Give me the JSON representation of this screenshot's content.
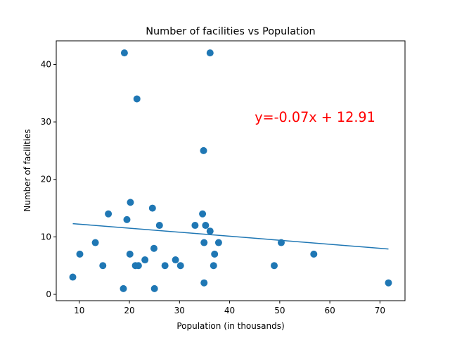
{
  "chart_data": {
    "type": "scatter",
    "title": "Number of facilities vs Population",
    "xlabel": "Population (in thousands)",
    "ylabel": "Number of facilities",
    "xlim": [
      5.4,
      75.0
    ],
    "ylim": [
      -1.1,
      44.1
    ],
    "x_ticks": [
      10,
      20,
      30,
      40,
      50,
      60,
      70
    ],
    "y_ticks": [
      0,
      10,
      20,
      30,
      40
    ],
    "grid": false,
    "points": [
      {
        "x": 8.7,
        "y": 3
      },
      {
        "x": 10.1,
        "y": 7
      },
      {
        "x": 13.2,
        "y": 9
      },
      {
        "x": 14.7,
        "y": 5
      },
      {
        "x": 15.8,
        "y": 14
      },
      {
        "x": 18.8,
        "y": 1
      },
      {
        "x": 19.0,
        "y": 42
      },
      {
        "x": 19.5,
        "y": 13
      },
      {
        "x": 20.1,
        "y": 7
      },
      {
        "x": 20.2,
        "y": 16
      },
      {
        "x": 21.2,
        "y": 5
      },
      {
        "x": 21.5,
        "y": 34
      },
      {
        "x": 21.8,
        "y": 5
      },
      {
        "x": 23.1,
        "y": 6
      },
      {
        "x": 24.6,
        "y": 15
      },
      {
        "x": 24.9,
        "y": 8
      },
      {
        "x": 25.0,
        "y": 1
      },
      {
        "x": 26.0,
        "y": 12
      },
      {
        "x": 27.1,
        "y": 5
      },
      {
        "x": 29.2,
        "y": 6
      },
      {
        "x": 30.2,
        "y": 5
      },
      {
        "x": 33.1,
        "y": 12
      },
      {
        "x": 34.6,
        "y": 14
      },
      {
        "x": 34.8,
        "y": 25
      },
      {
        "x": 34.9,
        "y": 9
      },
      {
        "x": 34.9,
        "y": 2
      },
      {
        "x": 35.2,
        "y": 12
      },
      {
        "x": 36.1,
        "y": 11
      },
      {
        "x": 36.1,
        "y": 42
      },
      {
        "x": 36.8,
        "y": 5
      },
      {
        "x": 37.0,
        "y": 7
      },
      {
        "x": 37.8,
        "y": 9
      },
      {
        "x": 48.9,
        "y": 5
      },
      {
        "x": 50.3,
        "y": 9
      },
      {
        "x": 56.8,
        "y": 7
      },
      {
        "x": 71.7,
        "y": 2
      }
    ],
    "regression": {
      "slope": -0.07,
      "intercept": 12.91,
      "x_start": 8.7,
      "x_end": 71.7
    },
    "annotation": {
      "text": "y=-0.07x + 12.91",
      "x": 45,
      "y": 30
    },
    "colors": {
      "points": "#1f77b4",
      "line": "#1f77b4",
      "annotation": "#ff0000"
    }
  }
}
